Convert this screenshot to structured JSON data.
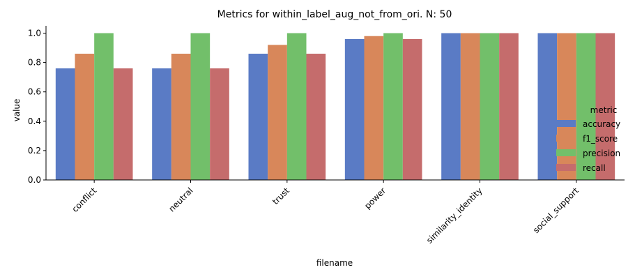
{
  "chart_data": {
    "type": "bar",
    "title": "Metrics for within_label_aug_not_from_ori. N: 50",
    "xlabel": "filename",
    "ylabel": "value",
    "ylim": [
      0,
      1.05
    ],
    "yticks": [
      "0.0",
      "0.2",
      "0.4",
      "0.6",
      "0.8",
      "1.0"
    ],
    "categories": [
      "conflict",
      "neutral",
      "trust",
      "power",
      "similarity_identity",
      "social_support"
    ],
    "legend_title": "metric",
    "legend_placement": "right",
    "series": [
      {
        "name": "accuracy",
        "color": "#5a7bc5",
        "values": [
          0.76,
          0.76,
          0.86,
          0.96,
          1.0,
          1.0
        ]
      },
      {
        "name": "f1_score",
        "color": "#d8875a",
        "values": [
          0.86,
          0.86,
          0.92,
          0.98,
          1.0,
          1.0
        ]
      },
      {
        "name": "precision",
        "color": "#72bf6a",
        "values": [
          1.0,
          1.0,
          1.0,
          1.0,
          1.0,
          1.0
        ]
      },
      {
        "name": "recall",
        "color": "#c56c6c",
        "values": [
          0.76,
          0.76,
          0.86,
          0.96,
          1.0,
          1.0
        ]
      }
    ]
  }
}
